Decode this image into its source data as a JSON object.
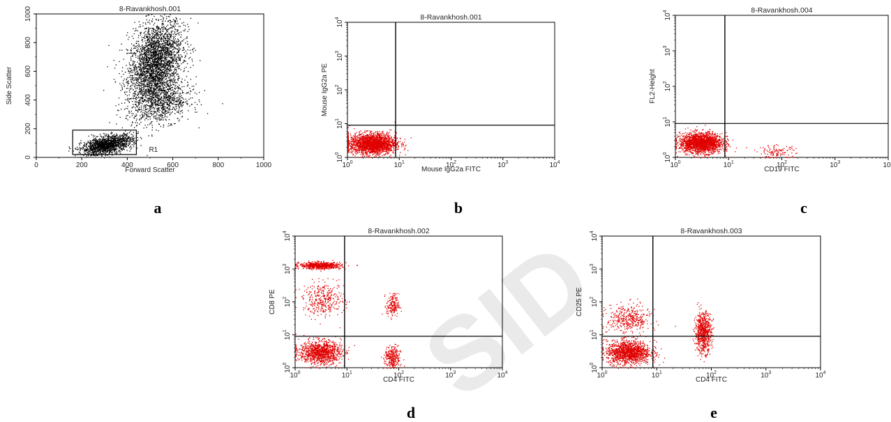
{
  "watermark": "SID",
  "chart_data": [
    {
      "panel": "a",
      "type": "scatter",
      "title": "8-Ravankhosh.001",
      "xlabel": "Forward Scatter",
      "ylabel": "Side Scatter",
      "scale": "linear",
      "xlim": [
        0,
        1000
      ],
      "ylim": [
        0,
        1000
      ],
      "xticks": [
        "0",
        "200",
        "400",
        "600",
        "800",
        "1000"
      ],
      "yticks": [
        "0",
        "200",
        "400",
        "600",
        "800",
        "1000"
      ],
      "gate": {
        "label": "R1",
        "x": [
          160,
          440
        ],
        "y": [
          20,
          190
        ]
      },
      "dot_color": "#000000",
      "populations": [
        {
          "x_center": 520,
          "y_center": 650,
          "x_spread": 60,
          "y_spread": 150,
          "tilt": 0.9,
          "n": 3000
        },
        {
          "x_center": 560,
          "y_center": 390,
          "x_spread": 60,
          "y_spread": 70,
          "tilt": 0.2,
          "n": 700
        },
        {
          "x_center": 310,
          "y_center": 90,
          "x_spread": 55,
          "y_spread": 30,
          "tilt": 0.3,
          "n": 1500
        }
      ]
    },
    {
      "panel": "b",
      "type": "scatter",
      "title": "8-Ravankhosh.001",
      "xlabel": "Mouse IgG2a FITC",
      "ylabel": "Mouse IgG2a PE",
      "scale": "log",
      "xlim": [
        1,
        10000
      ],
      "ylim": [
        1,
        10000
      ],
      "quadrant": {
        "x": 8.5,
        "y": 9
      },
      "dot_color": "#e00000",
      "populations": [
        {
          "x_center": 3,
          "y_center": 2.6,
          "x_spread": 0.45,
          "y_spread": 0.3,
          "n": 2200
        }
      ]
    },
    {
      "panel": "c",
      "type": "scatter",
      "title": "8-Ravankhosh.004",
      "xlabel": "CD19 FITC",
      "ylabel": "FL2-Height",
      "scale": "log",
      "xlim": [
        1,
        10000
      ],
      "ylim": [
        1,
        10000
      ],
      "quadrant": {
        "x": 8.5,
        "y": 9
      },
      "dot_color": "#e00000",
      "populations": [
        {
          "x_center": 3,
          "y_center": 2.6,
          "x_spread": 0.4,
          "y_spread": 0.28,
          "n": 2000
        },
        {
          "x_center": 80,
          "y_center": 1.4,
          "x_spread": 0.35,
          "y_spread": 0.2,
          "n": 120
        }
      ]
    },
    {
      "panel": "d",
      "type": "scatter",
      "title": "8-Ravankhosh.002",
      "xlabel": "CD4 FITC",
      "ylabel": "CD8 PE",
      "scale": "log",
      "xlim": [
        1,
        10000
      ],
      "ylim": [
        1,
        10000
      ],
      "quadrant": {
        "x": 9,
        "y": 9
      },
      "dot_color": "#e00000",
      "populations": [
        {
          "x_center": 3,
          "y_center": 1300,
          "x_spread": 0.4,
          "y_spread": 0.1,
          "n": 700
        },
        {
          "x_center": 3.5,
          "y_center": 120,
          "x_spread": 0.4,
          "y_spread": 0.5,
          "n": 350
        },
        {
          "x_center": 3,
          "y_center": 3,
          "x_spread": 0.4,
          "y_spread": 0.35,
          "n": 1100
        },
        {
          "x_center": 75,
          "y_center": 2,
          "x_spread": 0.15,
          "y_spread": 0.35,
          "n": 300
        },
        {
          "x_center": 75,
          "y_center": 80,
          "x_spread": 0.12,
          "y_spread": 0.35,
          "n": 180
        }
      ]
    },
    {
      "panel": "e",
      "type": "scatter",
      "title": "8-Ravankhosh.003",
      "xlabel": "CD4 FITC",
      "ylabel": "CD25 PE",
      "scale": "log",
      "xlim": [
        1,
        10000
      ],
      "ylim": [
        1,
        10000
      ],
      "quadrant": {
        "x": 8.5,
        "y": 9
      },
      "dot_color": "#e00000",
      "populations": [
        {
          "x_center": 3,
          "y_center": 3,
          "x_spread": 0.4,
          "y_spread": 0.35,
          "n": 1400
        },
        {
          "x_center": 3,
          "y_center": 30,
          "x_spread": 0.4,
          "y_spread": 0.45,
          "n": 400
        },
        {
          "x_center": 70,
          "y_center": 12,
          "x_spread": 0.15,
          "y_spread": 0.6,
          "n": 700
        }
      ]
    }
  ]
}
